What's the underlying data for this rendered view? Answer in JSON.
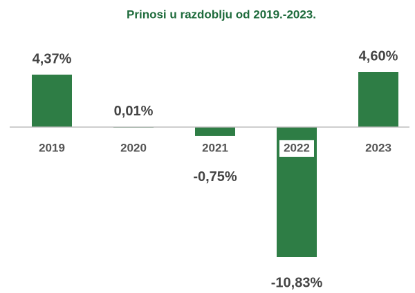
{
  "chart_data": {
    "type": "bar",
    "title": "Prinosi u razdoblju od 2019.-2023.",
    "categories": [
      "2019",
      "2020",
      "2021",
      "2022",
      "2023"
    ],
    "values": [
      4.37,
      0.01,
      -0.75,
      -10.83,
      4.6
    ],
    "value_labels": [
      "4,37%",
      "0,01%",
      "-0,75%",
      "-10,83%",
      "4,60%"
    ],
    "color": "#2e7d45"
  }
}
